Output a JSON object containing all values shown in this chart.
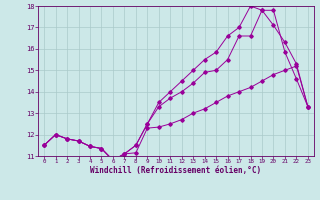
{
  "xlabel": "Windchill (Refroidissement éolien,°C)",
  "xlim": [
    -0.5,
    23.5
  ],
  "ylim": [
    11,
    18
  ],
  "xticks": [
    0,
    1,
    2,
    3,
    4,
    5,
    6,
    7,
    8,
    9,
    10,
    11,
    12,
    13,
    14,
    15,
    16,
    17,
    18,
    19,
    20,
    21,
    22,
    23
  ],
  "yticks": [
    11,
    12,
    13,
    14,
    15,
    16,
    17,
    18
  ],
  "bg_color": "#cce8e8",
  "line_color": "#990099",
  "grid_color": "#aacaca",
  "line1_x": [
    0,
    1,
    2,
    3,
    4,
    5,
    6,
    7,
    8,
    9,
    10,
    11,
    12,
    13,
    14,
    15,
    16,
    17,
    18,
    19,
    20,
    21,
    22,
    23
  ],
  "line1_y": [
    11.5,
    12.0,
    11.8,
    11.7,
    11.45,
    11.35,
    10.8,
    11.1,
    11.15,
    12.3,
    12.35,
    12.5,
    12.7,
    13.0,
    13.2,
    13.5,
    13.8,
    14.0,
    14.2,
    14.5,
    14.8,
    15.0,
    15.2,
    13.3
  ],
  "line2_x": [
    0,
    1,
    2,
    3,
    4,
    5,
    6,
    7,
    8,
    9,
    10,
    11,
    12,
    13,
    14,
    15,
    16,
    17,
    18,
    19,
    20,
    21,
    22,
    23
  ],
  "line2_y": [
    11.5,
    12.0,
    11.8,
    11.7,
    11.45,
    11.35,
    10.8,
    11.1,
    11.5,
    12.5,
    13.3,
    13.7,
    14.0,
    14.4,
    14.9,
    15.0,
    15.5,
    16.6,
    16.6,
    17.8,
    17.8,
    15.85,
    14.6,
    13.3
  ],
  "line3_x": [
    0,
    1,
    2,
    3,
    4,
    5,
    6,
    7,
    8,
    9,
    10,
    11,
    12,
    13,
    14,
    15,
    16,
    17,
    18,
    19,
    20,
    21,
    22,
    23
  ],
  "line3_y": [
    11.5,
    12.0,
    11.8,
    11.7,
    11.45,
    11.35,
    10.8,
    11.1,
    11.5,
    12.5,
    13.5,
    14.0,
    14.5,
    15.0,
    15.5,
    15.85,
    16.6,
    17.0,
    18.0,
    17.8,
    17.1,
    16.3,
    15.3,
    13.3
  ]
}
